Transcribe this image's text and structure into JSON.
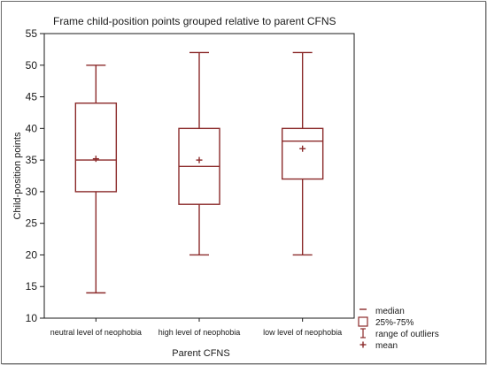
{
  "chart_data": {
    "type": "box",
    "title": "Frame child-position points grouped relative to parent CFNS",
    "xlabel": "Parent CFNS",
    "ylabel": "Child-position points",
    "ylim": [
      10,
      55
    ],
    "yticks": [
      10,
      15,
      20,
      25,
      30,
      35,
      40,
      45,
      50,
      55
    ],
    "categories": [
      "neutral level of neophobia",
      "high level of neophobia",
      "low level of neophobia"
    ],
    "boxes": [
      {
        "category": "neutral level of neophobia",
        "min": 14,
        "q1": 30,
        "median": 35,
        "q3": 44,
        "max": 50,
        "mean": 35.2
      },
      {
        "category": "high level of neophobia",
        "min": 20,
        "q1": 28,
        "median": 34,
        "q3": 40,
        "max": 52,
        "mean": 35.0
      },
      {
        "category": "low level of neophobia",
        "min": 20,
        "q1": 32,
        "median": 38,
        "q3": 40,
        "max": 52,
        "mean": 36.8
      }
    ],
    "legend": {
      "position": "bottom-right",
      "items": [
        "median",
        "25%-75%",
        "range of outliers",
        "mean"
      ]
    },
    "colors": {
      "box": "#8b2a2a",
      "axis": "#1a1a1a"
    }
  }
}
